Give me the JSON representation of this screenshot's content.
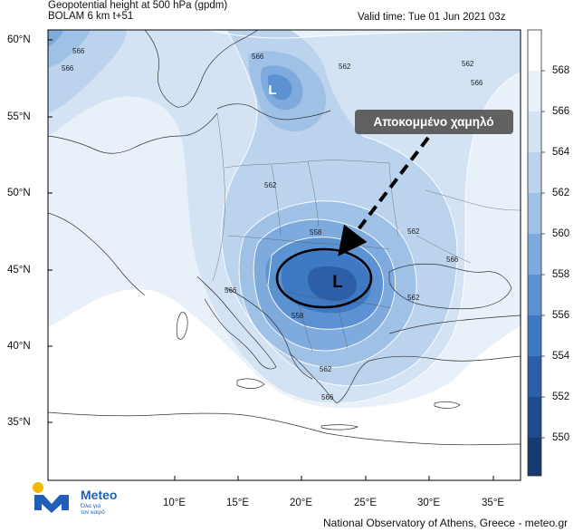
{
  "header": {
    "title_line1": "Geopotential height at 500 hPa (gpdm)",
    "title_line2": "BOLAM 6 km t+51",
    "valid_time": "Valid time: Tue 01 Jun 2021 03z"
  },
  "map": {
    "lat_labels": [
      "60°N",
      "55°N",
      "50°N",
      "45°N",
      "40°N",
      "35°N"
    ],
    "lon_labels": [
      "10°E",
      "15°E",
      "20°E",
      "25°E",
      "30°E",
      "35°E"
    ],
    "contour_labels": [
      "566",
      "566",
      "562",
      "562",
      "566",
      "562",
      "558",
      "562",
      "566",
      "566",
      "562",
      "558",
      "562",
      "566",
      "566"
    ],
    "lows": [
      {
        "label": "L",
        "desc": "small low over Baltic"
      },
      {
        "label": "L",
        "desc": "cut-off low over Balkans"
      }
    ],
    "annotation": "Αποκομμένο χαμηλό"
  },
  "colorbar": {
    "levels": [
      "568",
      "566",
      "564",
      "562",
      "560",
      "558",
      "556",
      "554",
      "552",
      "550"
    ],
    "colors": [
      "#ffffff",
      "#e8f0fa",
      "#d3e3f4",
      "#bcd3ee",
      "#9fc1e6",
      "#7eaadd",
      "#5d92d2",
      "#3f78c3",
      "#2c5fa8",
      "#1f4a8c",
      "#173a70"
    ]
  },
  "branding": {
    "logo_text": "Meteo",
    "logo_sub1": "Όλα για",
    "logo_sub2": "τον καιρό"
  },
  "footer": {
    "credit": "National Observatory of Athens, Greece - meteo.gr"
  }
}
